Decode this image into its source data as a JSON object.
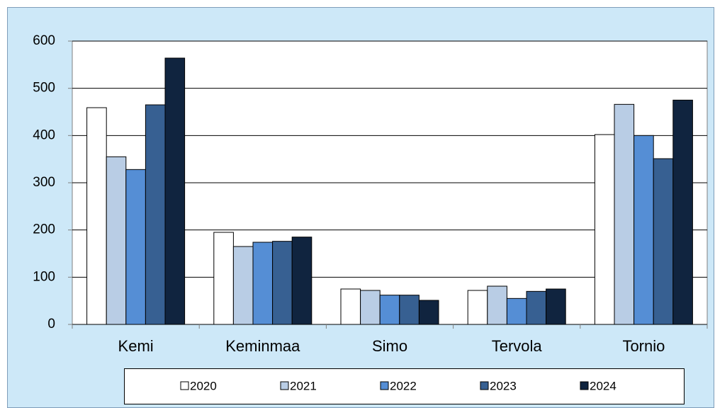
{
  "chart_data": {
    "type": "bar",
    "categories": [
      "Kemi",
      "Keminmaa",
      "Simo",
      "Tervola",
      "Tornio"
    ],
    "series": [
      {
        "name": "2020",
        "color": "#ffffff",
        "values": [
          459,
          195,
          75,
          72,
          402
        ]
      },
      {
        "name": "2021",
        "color": "#b9cde5",
        "values": [
          355,
          165,
          72,
          81,
          466
        ]
      },
      {
        "name": "2022",
        "color": "#558ed5",
        "values": [
          328,
          174,
          62,
          55,
          400
        ]
      },
      {
        "name": "2023",
        "color": "#376092",
        "values": [
          465,
          176,
          62,
          70,
          351
        ]
      },
      {
        "name": "2024",
        "color": "#10243f",
        "values": [
          564,
          185,
          51,
          75,
          475
        ]
      }
    ],
    "ylim": [
      0,
      600
    ],
    "yticks": [
      0,
      100,
      200,
      300,
      400,
      500,
      600
    ],
    "grid": true,
    "legend": "bottom"
  }
}
